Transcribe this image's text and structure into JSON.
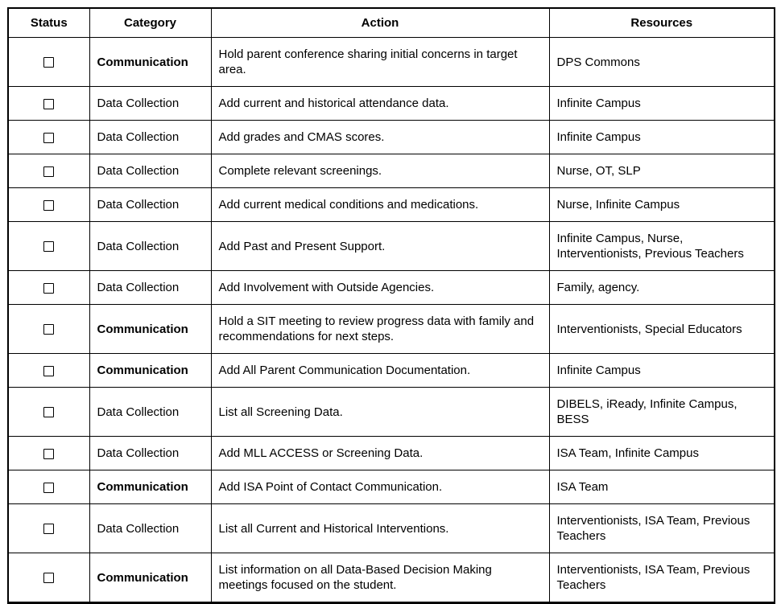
{
  "table": {
    "headers": [
      "Status",
      "Category",
      "Action",
      "Resources"
    ],
    "rows": [
      {
        "checked": false,
        "category": "Communication",
        "bold": true,
        "action": "Hold parent conference sharing initial concerns in target area.",
        "resources": "DPS Commons"
      },
      {
        "checked": false,
        "category": "Data Collection",
        "bold": false,
        "action": "Add current and historical attendance data.",
        "resources": "Infinite Campus"
      },
      {
        "checked": false,
        "category": "Data Collection",
        "bold": false,
        "action": "Add grades and CMAS scores.",
        "resources": "Infinite Campus"
      },
      {
        "checked": false,
        "category": "Data Collection",
        "bold": false,
        "action": "Complete relevant screenings.",
        "resources": "Nurse, OT, SLP"
      },
      {
        "checked": false,
        "category": "Data Collection",
        "bold": false,
        "action": "Add current medical conditions and medications.",
        "resources": "Nurse, Infinite Campus"
      },
      {
        "checked": false,
        "category": "Data Collection",
        "bold": false,
        "action": "Add Past and Present Support.",
        "resources": "Infinite Campus, Nurse, Interventionists, Previous Teachers"
      },
      {
        "checked": false,
        "category": "Data Collection",
        "bold": false,
        "action": "Add Involvement with Outside Agencies.",
        "resources": "Family, agency."
      },
      {
        "checked": false,
        "category": "Communication",
        "bold": true,
        "action": "Hold a SIT meeting to review progress data with family and recommendations for next steps.",
        "resources": "Interventionists, Special Educators"
      },
      {
        "checked": false,
        "category": "Communication",
        "bold": true,
        "action": "Add All Parent Communication Documentation.",
        "resources": "Infinite Campus"
      },
      {
        "checked": false,
        "category": "Data Collection",
        "bold": false,
        "action": "List all Screening Data.",
        "resources": "DIBELS, iReady, Infinite Campus, BESS"
      },
      {
        "checked": false,
        "category": "Data Collection",
        "bold": false,
        "action": "Add MLL ACCESS or Screening Data.",
        "resources": "ISA Team, Infinite Campus"
      },
      {
        "checked": false,
        "category": "Communication",
        "bold": true,
        "action": "Add ISA Point of Contact Communication.",
        "resources": "ISA Team"
      },
      {
        "checked": false,
        "category": "Data Collection",
        "bold": false,
        "action": "List all Current and Historical Interventions.",
        "resources": "Interventionists, ISA Team, Previous Teachers"
      },
      {
        "checked": false,
        "category": "Communication",
        "bold": true,
        "action": "List information on all Data-Based Decision Making meetings focused on the student.",
        "resources": "Interventionists, ISA Team, Previous Teachers"
      }
    ]
  }
}
